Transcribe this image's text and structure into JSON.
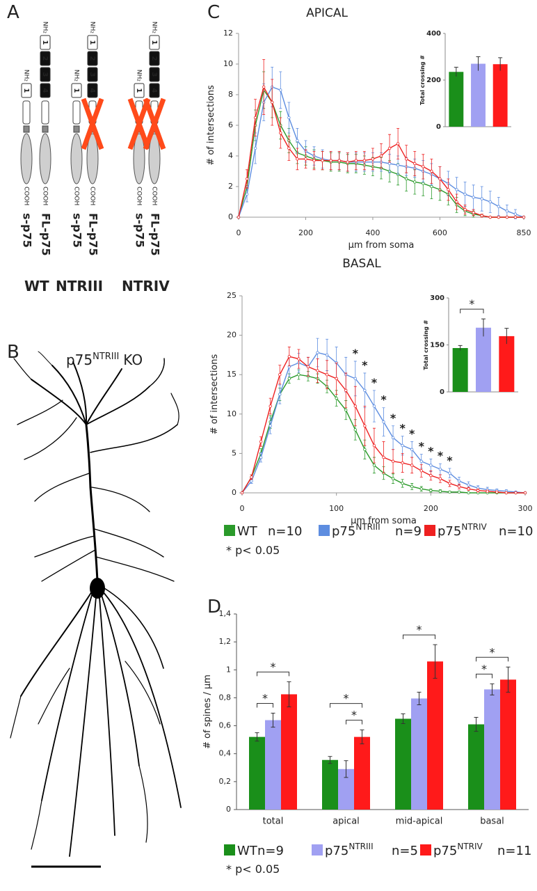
{
  "panels": [
    "A",
    "B",
    "C",
    "D"
  ],
  "diagram": {
    "n_terminus": "NH₂",
    "c_terminus": "COOH",
    "constructs": [
      {
        "name": "s-p75",
        "domains": [
          "1"
        ]
      },
      {
        "name": "FL-p75",
        "domains": [
          "1",
          "2",
          "3",
          "4"
        ]
      },
      {
        "name": "s-p75",
        "domains": [
          "1"
        ]
      },
      {
        "name": "FL-p75",
        "domains": [
          "1",
          "2",
          "3",
          "4"
        ],
        "deleted": true
      },
      {
        "name": "s-p75",
        "domains": [
          "1"
        ],
        "deleted": true
      },
      {
        "name": "FL-p75",
        "domains": [
          "1",
          "2",
          "3",
          "4"
        ],
        "deleted": true
      }
    ],
    "genotypes": [
      {
        "name": "WT",
        "color": "#1a9a1a"
      },
      {
        "name": "NTRIII",
        "color": "#6a9ae8"
      },
      {
        "name": "NTRIV",
        "color": "#e8201a"
      }
    ]
  },
  "neuron": {
    "name": "p75",
    "name_sup": "NTRIII",
    "suffix": "KO"
  },
  "chart_data": [
    {
      "type": "line",
      "title": "APICAL",
      "x_label": "µm from soma",
      "y_label": "# of intersections",
      "x": [
        0,
        25,
        50,
        75,
        100,
        125,
        150,
        175,
        200,
        225,
        250,
        275,
        300,
        325,
        350,
        375,
        400,
        425,
        450,
        475,
        500,
        525,
        550,
        575,
        600,
        625,
        650,
        675,
        700,
        725,
        750,
        775,
        800,
        825,
        850
      ],
      "xlim": [
        0,
        850
      ],
      "xticks": [
        0,
        200,
        400,
        600,
        850
      ],
      "ylim": [
        0,
        12
      ],
      "yticks": [
        0,
        2,
        4,
        6,
        8,
        10,
        12
      ],
      "series": [
        {
          "color": "#2a9a2a",
          "values": [
            0,
            2,
            6,
            8.3,
            7.5,
            6,
            5,
            4.2,
            4,
            3.8,
            3.7,
            3.6,
            3.6,
            3.5,
            3.5,
            3.4,
            3.3,
            3.2,
            3,
            2.8,
            2.5,
            2.3,
            2.2,
            2,
            1.8,
            1.5,
            0.8,
            0.4,
            0.2,
            0.1,
            0,
            0,
            0,
            0,
            0
          ],
          "errors": [
            0,
            0.5,
            1,
            1.2,
            1,
            0.9,
            0.8,
            0.7,
            0.6,
            0.6,
            0.6,
            0.6,
            0.6,
            0.6,
            0.6,
            0.6,
            0.6,
            0.7,
            0.7,
            0.7,
            0.8,
            0.8,
            0.8,
            0.8,
            0.7,
            0.7,
            0.5,
            0.3,
            0.2,
            0.1,
            0,
            0,
            0,
            0,
            0
          ]
        },
        {
          "color": "#5d8de0",
          "values": [
            0,
            1.5,
            4.5,
            7.5,
            8.5,
            8.3,
            6.5,
            5,
            4.3,
            4,
            3.8,
            3.7,
            3.7,
            3.6,
            3.6,
            3.6,
            3.6,
            3.6,
            3.5,
            3.4,
            3.3,
            3.2,
            3,
            2.8,
            2.5,
            2.2,
            1.8,
            1.5,
            1.3,
            1.2,
            1,
            0.7,
            0.4,
            0.2,
            0
          ],
          "errors": [
            0,
            0.5,
            1,
            1.2,
            1.3,
            1.2,
            1,
            0.8,
            0.7,
            0.6,
            0.6,
            0.6,
            0.6,
            0.6,
            0.6,
            0.6,
            0.6,
            0.6,
            0.6,
            0.6,
            0.6,
            0.6,
            0.7,
            0.7,
            0.8,
            0.8,
            0.8,
            0.8,
            0.8,
            0.8,
            0.7,
            0.6,
            0.4,
            0.3,
            0
          ]
        },
        {
          "color": "#ee2020",
          "values": [
            0,
            2.5,
            6.5,
            8.5,
            7.5,
            5.5,
            4.5,
            3.8,
            3.8,
            3.7,
            3.7,
            3.7,
            3.7,
            3.6,
            3.7,
            3.7,
            3.8,
            4,
            4.5,
            4.8,
            3.8,
            3.5,
            3.3,
            3,
            2.5,
            1.8,
            1,
            0.5,
            0.3,
            0.1,
            0,
            0,
            0,
            0,
            0
          ],
          "errors": [
            0,
            0.6,
            1.2,
            1.8,
            1.5,
            1,
            0.8,
            0.7,
            0.6,
            0.6,
            0.6,
            0.6,
            0.6,
            0.6,
            0.6,
            0.6,
            0.7,
            0.8,
            0.9,
            1,
            0.9,
            0.8,
            0.8,
            0.8,
            0.8,
            0.7,
            0.5,
            0.3,
            0.2,
            0.1,
            0,
            0,
            0,
            0,
            0
          ]
        }
      ]
    },
    {
      "type": "bar",
      "y_label": "Total crossing #",
      "values": [
        235,
        270,
        268
      ],
      "errors": [
        20,
        30,
        28
      ],
      "colors": [
        "#1a8f1a",
        "#a0a0f2",
        "#ff1a1a"
      ],
      "ylim": [
        0,
        400
      ],
      "yticks": [
        0,
        200,
        400
      ]
    },
    {
      "type": "line",
      "title": "BASAL",
      "x_label": "µm from soma",
      "y_label": "# of intersections",
      "x": [
        0,
        10,
        20,
        30,
        40,
        50,
        60,
        70,
        80,
        90,
        100,
        110,
        120,
        130,
        140,
        150,
        160,
        170,
        180,
        190,
        200,
        210,
        220,
        230,
        240,
        250,
        260,
        270,
        280,
        290,
        300
      ],
      "xlim": [
        0,
        300
      ],
      "xticks": [
        0,
        100,
        200,
        300
      ],
      "ylim": [
        0,
        25
      ],
      "yticks": [
        0,
        5,
        10,
        15,
        20,
        25
      ],
      "significant_x": [
        120,
        130,
        140,
        150,
        160,
        170,
        180,
        190,
        200,
        210,
        220
      ],
      "significance_label": "*",
      "note": "* p< 0.05",
      "series": [
        {
          "name": "WT",
          "n": "n=10",
          "color": "#2a9a2a",
          "values": [
            0,
            2,
            5,
            9,
            12.5,
            14.5,
            15,
            14.8,
            14.5,
            13.5,
            12,
            10.5,
            8,
            5.5,
            3.5,
            2.5,
            1.8,
            1.2,
            0.8,
            0.5,
            0.3,
            0.2,
            0.1,
            0.1,
            0,
            0,
            0,
            0,
            0,
            0,
            0
          ],
          "errors": [
            0,
            0.3,
            0.6,
            0.8,
            0.8,
            0.6,
            0.6,
            0.6,
            0.6,
            0.8,
            1,
            1.2,
            1.3,
            1.2,
            1,
            0.8,
            0.6,
            0.5,
            0.4,
            0.3,
            0.2,
            0.2,
            0.1,
            0.1,
            0,
            0,
            0,
            0,
            0,
            0,
            0
          ]
        },
        {
          "name": "p75",
          "name_sup": "NTRIII",
          "n": "n=9",
          "color": "#5d8de0",
          "values": [
            0,
            1.5,
            4.5,
            8.5,
            12.5,
            16,
            16.5,
            16,
            17.8,
            17.5,
            16.5,
            15,
            14.5,
            13,
            11,
            9,
            7,
            6,
            5.5,
            4,
            3.5,
            3,
            2.5,
            1.5,
            1,
            0.6,
            0.4,
            0.3,
            0.2,
            0.1,
            0
          ],
          "errors": [
            0,
            0.3,
            0.6,
            1,
            1.2,
            1.2,
            1.2,
            1.2,
            1.8,
            2,
            2,
            2.2,
            2.2,
            2.2,
            2,
            1.8,
            1.5,
            1.2,
            1,
            0.9,
            0.8,
            0.7,
            0.6,
            0.5,
            0.4,
            0.3,
            0.3,
            0.2,
            0.2,
            0.1,
            0
          ]
        },
        {
          "name": "p75",
          "name_sup": "NTRIV",
          "n": "n=10",
          "color": "#ee2020",
          "values": [
            0,
            2,
            6.5,
            11,
            15,
            17.3,
            17,
            16,
            15.5,
            15,
            14.5,
            13,
            11,
            8.5,
            6,
            4.5,
            4,
            3.8,
            3.5,
            2.8,
            2.2,
            1.8,
            1.2,
            0.8,
            0.5,
            0.3,
            0.2,
            0.1,
            0,
            0,
            0
          ],
          "errors": [
            0,
            0.3,
            0.6,
            1,
            1.2,
            1.2,
            1.2,
            1.2,
            1.5,
            1.8,
            2,
            2.2,
            2.5,
            2.5,
            2.2,
            2,
            1.5,
            1.2,
            1,
            0.8,
            0.6,
            0.5,
            0.4,
            0.3,
            0.2,
            0.2,
            0.1,
            0.1,
            0,
            0,
            0
          ]
        }
      ]
    },
    {
      "type": "bar",
      "y_label": "Total crossing #",
      "values": [
        140,
        205,
        178
      ],
      "errors": [
        8,
        28,
        25
      ],
      "colors": [
        "#1a8f1a",
        "#a0a0f2",
        "#ff1a1a"
      ],
      "significance_vs_wt": [
        null,
        "*",
        null
      ],
      "ylim": [
        0,
        300
      ],
      "yticks": [
        0,
        150,
        300
      ]
    },
    {
      "type": "bar",
      "y_label": "# of spines / µm",
      "categories": [
        "total",
        "apical",
        "mid-apical",
        "basal"
      ],
      "ylim": [
        0,
        1.4
      ],
      "yticks": [
        0,
        {
          "value": 0.2,
          "label": "0,2"
        },
        {
          "value": 0.4,
          "label": "0,4"
        },
        {
          "value": 0.6,
          "label": "0,6"
        },
        {
          "value": 0.8,
          "label": "0,8"
        },
        1,
        {
          "value": 1.2,
          "label": "1,2"
        },
        {
          "value": 1.4,
          "label": "1,4"
        }
      ],
      "note": "* p< 0.05",
      "series": [
        {
          "name": "WT",
          "n": "n=9",
          "color": "#1a8f1a",
          "values": [
            0.52,
            0.355,
            0.65,
            0.61
          ],
          "errors": [
            0.03,
            0.025,
            0.035,
            0.05
          ]
        },
        {
          "name": "p75",
          "name_sup": "NTRIII",
          "n": "n=5",
          "color": "#a0a0f2",
          "values": [
            0.64,
            0.29,
            0.795,
            0.86
          ],
          "errors": [
            0.05,
            0.06,
            0.045,
            0.04
          ],
          "significance_vs_wt": [
            "*",
            null,
            null,
            "*"
          ]
        },
        {
          "name": "p75",
          "name_sup": "NTRIV",
          "n": "n=11",
          "color": "#ff1a1a",
          "values": [
            0.825,
            0.52,
            1.06,
            0.93
          ],
          "errors": [
            0.09,
            0.05,
            0.12,
            0.09
          ],
          "significance_vs_wt": [
            "*",
            "*",
            "*",
            "*"
          ],
          "significance_vs_ntriii": [
            null,
            "*",
            null,
            null
          ]
        }
      ]
    }
  ]
}
